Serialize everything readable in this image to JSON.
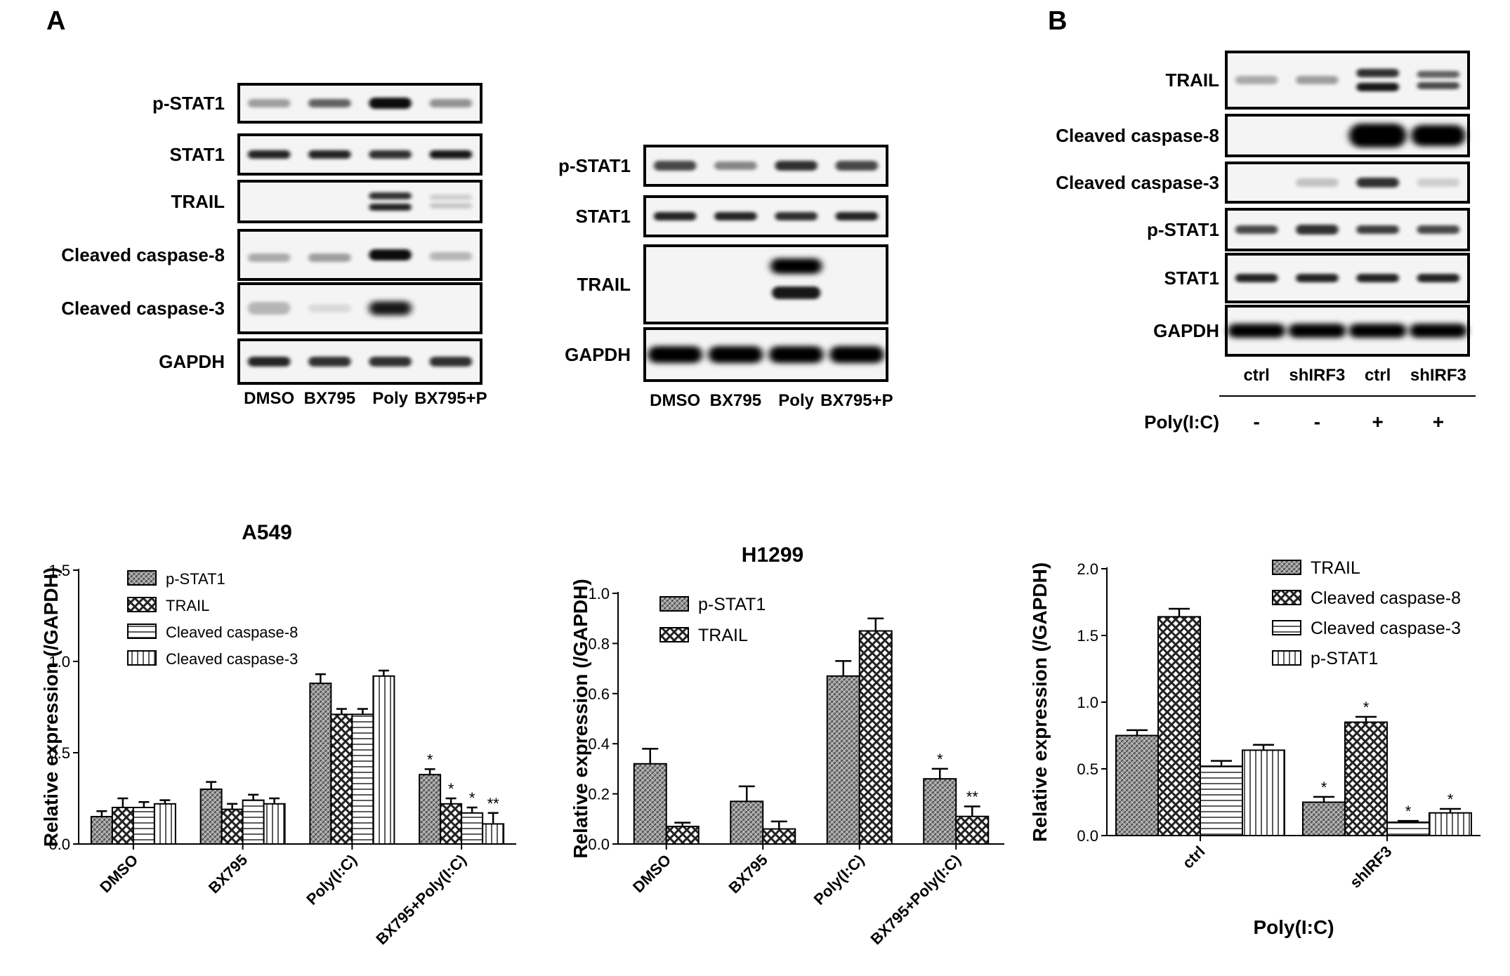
{
  "panel_letters": [
    "A",
    "B"
  ],
  "blots": {
    "a549": {
      "title": "A549",
      "rows": [
        "p-STAT1",
        "STAT1",
        "TRAIL",
        "Cleaved caspase-8",
        "Cleaved caspase-3",
        "GAPDH"
      ],
      "lanes": [
        "DMSO",
        "BX795",
        "Poly",
        "BX795+P"
      ]
    },
    "h1299": {
      "title": "H1299",
      "rows": [
        "p-STAT1",
        "STAT1",
        "TRAIL",
        "GAPDH"
      ],
      "lanes": [
        "DMSO",
        "BX795",
        "Poly",
        "BX795+P"
      ]
    },
    "b": {
      "rows": [
        "TRAIL",
        "Cleaved caspase-8",
        "Cleaved caspase-3",
        "p-STAT1",
        "STAT1",
        "GAPDH"
      ],
      "lanes": [
        "ctrl",
        "shIRF3",
        "ctrl",
        "shIRF3"
      ],
      "treatment_label": "Poly(I:C)",
      "treatment": [
        "-",
        "-",
        "+",
        "+"
      ]
    }
  },
  "chart_data": [
    {
      "type": "bar",
      "title": "A549",
      "ylabel": "Relative expression (/GAPDH)",
      "xlabel": "",
      "ylim": [
        0,
        1.5
      ],
      "yticks": [
        "0.0",
        "0.5",
        "1.0",
        "1.5"
      ],
      "categories": [
        "DMSO",
        "BX795",
        "Poly(I:C)",
        "BX795+Poly(I:C)"
      ],
      "series": [
        {
          "name": "p-STAT1",
          "values": [
            0.15,
            0.3,
            0.88,
            0.38
          ],
          "errors": [
            0.03,
            0.04,
            0.05,
            0.03
          ],
          "sig": [
            "",
            "",
            "",
            "*"
          ]
        },
        {
          "name": "TRAIL",
          "values": [
            0.2,
            0.19,
            0.71,
            0.22
          ],
          "errors": [
            0.05,
            0.03,
            0.03,
            0.03
          ],
          "sig": [
            "",
            "",
            "",
            "*"
          ]
        },
        {
          "name": "Cleaved caspase-8",
          "values": [
            0.2,
            0.24,
            0.71,
            0.17
          ],
          "errors": [
            0.03,
            0.03,
            0.03,
            0.03
          ],
          "sig": [
            "",
            "",
            "",
            "*"
          ]
        },
        {
          "name": "Cleaved caspase-3",
          "values": [
            0.22,
            0.22,
            0.92,
            0.11
          ],
          "errors": [
            0.02,
            0.03,
            0.03,
            0.06
          ],
          "sig": [
            "",
            "",
            "",
            "**"
          ]
        }
      ],
      "legend": "top-left"
    },
    {
      "type": "bar",
      "title": "H1299",
      "ylabel": "Relative expression (/GAPDH)",
      "xlabel": "",
      "ylim": [
        0,
        1.0
      ],
      "yticks": [
        "0.0",
        "0.2",
        "0.4",
        "0.6",
        "0.8",
        "1.0"
      ],
      "categories": [
        "DMSO",
        "BX795",
        "Poly(I:C)",
        "BX795+Poly(I:C)"
      ],
      "series": [
        {
          "name": "p-STAT1",
          "values": [
            0.32,
            0.17,
            0.67,
            0.26
          ],
          "errors": [
            0.06,
            0.06,
            0.06,
            0.04
          ],
          "sig": [
            "",
            "",
            "",
            "*"
          ]
        },
        {
          "name": "TRAIL",
          "values": [
            0.07,
            0.06,
            0.85,
            0.11
          ],
          "errors": [
            0.015,
            0.03,
            0.05,
            0.04
          ],
          "sig": [
            "",
            "",
            "",
            "**"
          ]
        }
      ],
      "legend": "top-left"
    },
    {
      "type": "bar",
      "title": "",
      "ylabel": "Relative expression (/GAPDH)",
      "xlabel": "Poly(I:C)",
      "ylim": [
        0,
        2.0
      ],
      "yticks": [
        "0.0",
        "0.5",
        "1.0",
        "1.5",
        "2.0"
      ],
      "categories": [
        "ctrl",
        "shIRF3"
      ],
      "series": [
        {
          "name": "TRAIL",
          "values": [
            0.75,
            0.25
          ],
          "errors": [
            0.04,
            0.04
          ],
          "sig": [
            "",
            "*"
          ]
        },
        {
          "name": "Cleaved caspase-8",
          "values": [
            1.64,
            0.85
          ],
          "errors": [
            0.06,
            0.04
          ],
          "sig": [
            "",
            "*"
          ]
        },
        {
          "name": "Cleaved caspase-3",
          "values": [
            0.52,
            0.1
          ],
          "errors": [
            0.04,
            0.01
          ],
          "sig": [
            "",
            "*"
          ]
        },
        {
          "name": "p-STAT1",
          "values": [
            0.64,
            0.17
          ],
          "errors": [
            0.04,
            0.03
          ],
          "sig": [
            "",
            "*"
          ]
        }
      ],
      "legend": "top-right"
    }
  ]
}
